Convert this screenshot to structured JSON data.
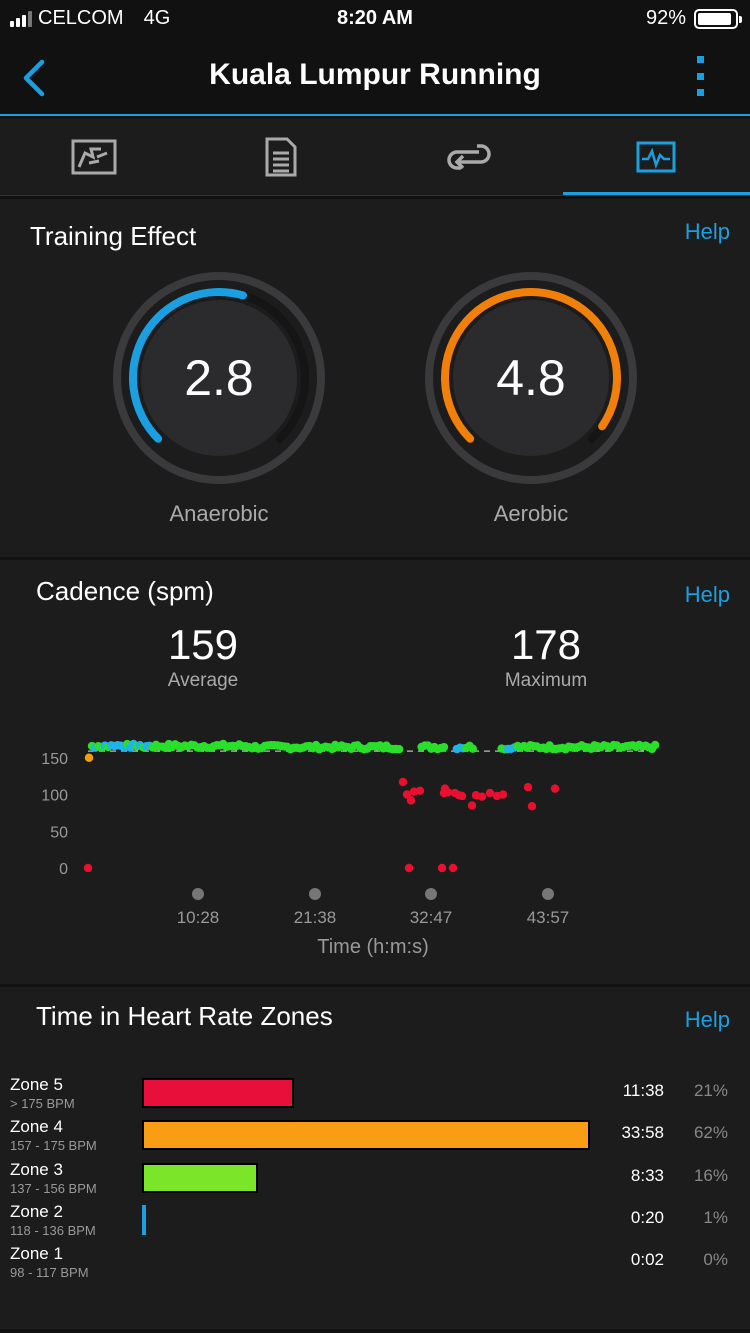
{
  "status": {
    "carrier": "CELCOM",
    "network": "4G",
    "time": "8:20 AM",
    "battery": "92%",
    "battery_level": 0.92
  },
  "header": {
    "title": "Kuala Lumpur Running"
  },
  "tabs": [
    {
      "icon": "map-icon",
      "active": false
    },
    {
      "icon": "document-icon",
      "active": false
    },
    {
      "icon": "laps-icon",
      "active": false
    },
    {
      "icon": "chart-icon",
      "active": true
    }
  ],
  "training_effect": {
    "title": "Training Effect",
    "help": "Help",
    "anaerobic": {
      "value": "2.8",
      "label": "Anaerobic",
      "fraction": 0.56,
      "color": "#1a9fe0"
    },
    "aerobic": {
      "value": "4.8",
      "label": "Aerobic",
      "fraction": 0.96,
      "color": "#f0800a"
    }
  },
  "cadence": {
    "title": "Cadence (spm)",
    "help": "Help",
    "average": {
      "value": "159",
      "label": "Average"
    },
    "maximum": {
      "value": "178",
      "label": "Maximum"
    }
  },
  "chart_data": {
    "type": "scatter",
    "xlabel": "Time (h:m:s)",
    "ylabel": "",
    "x_ticks": [
      "10:28",
      "21:38",
      "32:47",
      "43:57"
    ],
    "y_ticks": [
      "150",
      "100",
      "50",
      "0"
    ],
    "ylim": [
      0,
      180
    ],
    "reference_line": 159,
    "colors": {
      "high": "#2adf2a",
      "top": "#1fb4e6",
      "low": "#e8102e",
      "start": "#f5a00a"
    }
  },
  "hr_zones": {
    "title": "Time in Heart Rate Zones",
    "help": "Help",
    "zones": [
      {
        "name": "Zone 5",
        "range": "> 175 BPM",
        "time": "11:38",
        "pct": "21%",
        "fraction": 0.21,
        "color": "#e8103a"
      },
      {
        "name": "Zone 4",
        "range": "157 - 175 BPM",
        "time": "33:58",
        "pct": "62%",
        "fraction": 0.62,
        "color": "#f99e14"
      },
      {
        "name": "Zone 3",
        "range": "137 - 156 BPM",
        "time": "8:33",
        "pct": "16%",
        "fraction": 0.16,
        "color": "#7be529"
      },
      {
        "name": "Zone 2",
        "range": "118 - 136 BPM",
        "time": "0:20",
        "pct": "1%",
        "fraction": 0.005,
        "color": "#1a9fe0"
      },
      {
        "name": "Zone 1",
        "range": "98 - 117 BPM",
        "time": "0:02",
        "pct": "0%",
        "fraction": 0.0,
        "color": "#888888"
      }
    ]
  }
}
